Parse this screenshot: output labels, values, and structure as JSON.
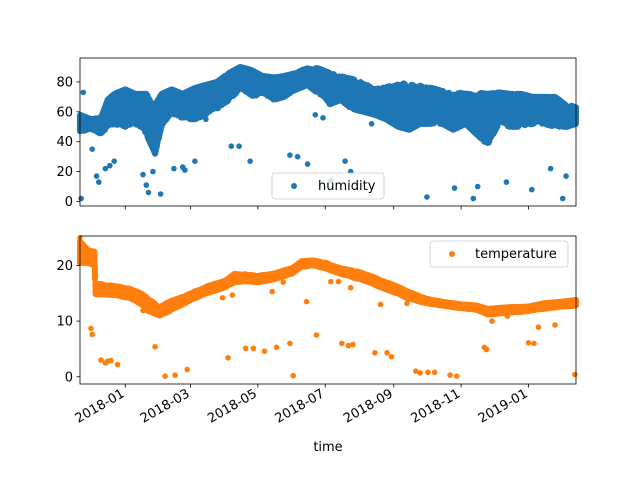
{
  "chart_data": [
    {
      "type": "scatter",
      "xlabel": "",
      "x_axis": {
        "type": "date",
        "xlim": [
          "2017-11-21",
          "2019-02-13"
        ],
        "ticks": [
          "2018-01",
          "2018-03",
          "2018-05",
          "2018-07",
          "2018-09",
          "2018-11",
          "2019-01"
        ],
        "tick_labels_visible": false
      },
      "ylim": [
        -3,
        96
      ],
      "yticks": [
        0,
        20,
        40,
        60,
        80
      ],
      "legend": {
        "entries": [
          "humidity"
        ],
        "placement": "lower-center"
      },
      "grid": false,
      "series": [
        {
          "name": "humidity",
          "color": "#1f77b4",
          "marker": "circle",
          "band": [
            [
              "2017-11-21",
              47,
              58
            ],
            [
              "2017-12-01",
              48,
              55
            ],
            [
              "2017-12-10",
              45,
              56
            ],
            [
              "2017-12-16",
              50,
              68
            ],
            [
              "2017-12-22",
              52,
              72
            ],
            [
              "2018-01-01",
              48,
              75
            ],
            [
              "2018-01-10",
              52,
              72
            ],
            [
              "2018-01-20",
              45,
              72
            ],
            [
              "2018-01-28",
              32,
              65
            ],
            [
              "2018-02-03",
              50,
              72
            ],
            [
              "2018-02-12",
              58,
              75
            ],
            [
              "2018-02-22",
              55,
              72
            ],
            [
              "2018-03-05",
              55,
              76
            ],
            [
              "2018-03-15",
              58,
              78
            ],
            [
              "2018-03-25",
              62,
              80
            ],
            [
              "2018-04-05",
              68,
              86
            ],
            [
              "2018-04-15",
              75,
              90
            ],
            [
              "2018-04-25",
              70,
              88
            ],
            [
              "2018-05-05",
              72,
              84
            ],
            [
              "2018-05-15",
              68,
              83
            ],
            [
              "2018-05-25",
              70,
              84
            ],
            [
              "2018-06-05",
              75,
              86
            ],
            [
              "2018-06-15",
              78,
              90
            ],
            [
              "2018-06-25",
              72,
              89
            ],
            [
              "2018-07-05",
              65,
              86
            ],
            [
              "2018-07-15",
              68,
              84
            ],
            [
              "2018-07-25",
              62,
              82
            ],
            [
              "2018-08-05",
              60,
              80
            ],
            [
              "2018-08-15",
              58,
              76
            ],
            [
              "2018-08-25",
              55,
              78
            ],
            [
              "2018-09-05",
              50,
              80
            ],
            [
              "2018-09-15",
              48,
              78
            ],
            [
              "2018-09-25",
              52,
              78
            ],
            [
              "2018-10-05",
              52,
              76
            ],
            [
              "2018-10-15",
              52,
              74
            ],
            [
              "2018-10-25",
              48,
              72
            ],
            [
              "2018-11-05",
              52,
              74
            ],
            [
              "2018-11-15",
              45,
              73
            ],
            [
              "2018-11-25",
              38,
              72
            ],
            [
              "2018-12-05",
              52,
              73
            ],
            [
              "2018-12-15",
              50,
              72
            ],
            [
              "2018-12-25",
              50,
              72
            ],
            [
              "2019-01-05",
              52,
              70
            ],
            [
              "2019-01-15",
              52,
              70
            ],
            [
              "2019-01-25",
              50,
              70
            ],
            [
              "2019-02-05",
              50,
              64
            ],
            [
              "2019-02-13",
              52,
              64
            ]
          ],
          "points": [
            [
              "2017-11-22",
              2
            ],
            [
              "2017-11-24",
              73
            ],
            [
              "2017-12-02",
              35
            ],
            [
              "2017-12-06",
              17
            ],
            [
              "2017-12-08",
              13
            ],
            [
              "2017-12-14",
              22
            ],
            [
              "2017-12-18",
              24
            ],
            [
              "2017-12-22",
              27
            ],
            [
              "2018-01-17",
              18
            ],
            [
              "2018-01-20",
              11
            ],
            [
              "2018-01-22",
              6
            ],
            [
              "2018-01-26",
              20
            ],
            [
              "2018-01-27",
              34
            ],
            [
              "2018-02-02",
              5
            ],
            [
              "2018-02-14",
              22
            ],
            [
              "2018-02-22",
              23
            ],
            [
              "2018-02-24",
              21
            ],
            [
              "2018-03-05",
              27
            ],
            [
              "2018-03-15",
              55
            ],
            [
              "2018-04-07",
              37
            ],
            [
              "2018-04-14",
              37
            ],
            [
              "2018-04-24",
              27
            ],
            [
              "2018-05-30",
              31
            ],
            [
              "2018-06-06",
              30
            ],
            [
              "2018-06-15",
              25
            ],
            [
              "2018-06-22",
              58
            ],
            [
              "2018-06-29",
              56
            ],
            [
              "2018-07-06",
              14
            ],
            [
              "2018-07-19",
              27
            ],
            [
              "2018-07-24",
              20
            ],
            [
              "2018-08-12",
              52
            ],
            [
              "2018-09-14",
              52
            ],
            [
              "2018-10-01",
              3
            ],
            [
              "2018-10-26",
              9
            ],
            [
              "2018-11-12",
              2
            ],
            [
              "2018-11-16",
              10
            ],
            [
              "2018-12-12",
              13
            ],
            [
              "2019-01-04",
              8
            ],
            [
              "2019-01-21",
              22
            ],
            [
              "2019-02-01",
              2
            ],
            [
              "2019-02-04",
              17
            ]
          ]
        }
      ]
    },
    {
      "type": "scatter",
      "xlabel": "time",
      "x_axis": {
        "type": "date",
        "xlim": [
          "2017-11-21",
          "2019-02-13"
        ],
        "ticks": [
          "2018-01",
          "2018-03",
          "2018-05",
          "2018-07",
          "2018-09",
          "2018-11",
          "2019-01"
        ],
        "tick_labels": [
          "2018-01",
          "2018-03",
          "2018-05",
          "2018-07",
          "2018-09",
          "2018-11",
          "2019-01"
        ],
        "tick_rotation": 30
      },
      "ylim": [
        -1.3,
        25.3
      ],
      "yticks": [
        0,
        10,
        20
      ],
      "legend": {
        "entries": [
          "temperature"
        ],
        "placement": "upper-right"
      },
      "grid": false,
      "series": [
        {
          "name": "temperature",
          "color": "#ff7f0e",
          "marker": "circle",
          "band": [
            [
              "2017-11-21",
              20.5,
              24.5
            ],
            [
              "2017-11-28",
              20.5,
              23.0
            ],
            [
              "2017-12-04",
              20.0,
              22.5
            ],
            [
              "2017-12-05",
              14.8,
              16.8
            ],
            [
              "2017-12-15",
              14.8,
              16.5
            ],
            [
              "2017-12-25",
              14.5,
              16.2
            ],
            [
              "2018-01-05",
              14.2,
              15.8
            ],
            [
              "2018-01-15",
              13.0,
              15.0
            ],
            [
              "2018-01-22",
              11.8,
              14.0
            ],
            [
              "2018-02-01",
              11.0,
              12.5
            ],
            [
              "2018-02-10",
              11.8,
              13.5
            ],
            [
              "2018-02-20",
              12.8,
              14.2
            ],
            [
              "2018-03-01",
              13.8,
              15.0
            ],
            [
              "2018-03-15",
              15.0,
              16.2
            ],
            [
              "2018-04-01",
              16.0,
              17.2
            ],
            [
              "2018-04-10",
              17.0,
              18.5
            ],
            [
              "2018-04-20",
              17.2,
              18.4
            ],
            [
              "2018-05-01",
              17.0,
              18.2
            ],
            [
              "2018-05-15",
              17.5,
              18.6
            ],
            [
              "2018-06-01",
              18.5,
              19.5
            ],
            [
              "2018-06-10",
              19.8,
              20.8
            ],
            [
              "2018-06-20",
              20.0,
              20.9
            ],
            [
              "2018-07-01",
              19.5,
              20.5
            ],
            [
              "2018-07-15",
              18.5,
              19.5
            ],
            [
              "2018-08-01",
              17.5,
              18.8
            ],
            [
              "2018-08-15",
              16.5,
              17.8
            ],
            [
              "2018-09-01",
              15.2,
              16.5
            ],
            [
              "2018-09-15",
              14.0,
              15.2
            ],
            [
              "2018-10-01",
              13.2,
              14.0
            ],
            [
              "2018-10-15",
              12.8,
              13.5
            ],
            [
              "2018-11-01",
              12.3,
              13.0
            ],
            [
              "2018-11-15",
              12.0,
              12.8
            ],
            [
              "2018-11-25",
              11.2,
              12.2
            ],
            [
              "2018-12-15",
              11.5,
              12.5
            ],
            [
              "2019-01-01",
              11.8,
              12.6
            ],
            [
              "2019-01-15",
              12.2,
              13.2
            ],
            [
              "2019-02-01",
              12.6,
              13.5
            ],
            [
              "2019-02-13",
              12.8,
              13.8
            ]
          ],
          "points": [
            [
              "2017-11-21",
              25
            ],
            [
              "2017-12-01",
              8.7
            ],
            [
              "2017-12-02",
              7.6
            ],
            [
              "2017-12-10",
              3
            ],
            [
              "2017-12-14",
              2.5
            ],
            [
              "2017-12-16",
              2.8
            ],
            [
              "2017-12-19",
              2.9
            ],
            [
              "2017-12-25",
              2.2
            ],
            [
              "2018-01-17",
              11.9
            ],
            [
              "2018-01-28",
              5.4
            ],
            [
              "2018-02-06",
              0.1
            ],
            [
              "2018-02-15",
              0.3
            ],
            [
              "2018-02-26",
              1.3
            ],
            [
              "2018-03-30",
              14.2
            ],
            [
              "2018-04-04",
              3.4
            ],
            [
              "2018-04-08",
              14.7
            ],
            [
              "2018-04-20",
              5.1
            ],
            [
              "2018-04-27",
              5.1
            ],
            [
              "2018-05-07",
              4.6
            ],
            [
              "2018-05-14",
              15.3
            ],
            [
              "2018-05-18",
              5.3
            ],
            [
              "2018-05-24",
              17
            ],
            [
              "2018-05-30",
              6
            ],
            [
              "2018-06-02",
              0.2
            ],
            [
              "2018-06-14",
              13.5
            ],
            [
              "2018-06-23",
              7.5
            ],
            [
              "2018-07-06",
              17.1
            ],
            [
              "2018-07-13",
              17.1
            ],
            [
              "2018-07-16",
              6
            ],
            [
              "2018-07-22",
              5.6
            ],
            [
              "2018-07-24",
              16
            ],
            [
              "2018-07-26",
              5.8
            ],
            [
              "2018-08-15",
              4.3
            ],
            [
              "2018-08-20",
              13
            ],
            [
              "2018-08-26",
              4.3
            ],
            [
              "2018-08-30",
              3.6
            ],
            [
              "2018-09-13",
              13.2
            ],
            [
              "2018-09-21",
              1
            ],
            [
              "2018-09-25",
              0.7
            ],
            [
              "2018-10-02",
              0.8
            ],
            [
              "2018-10-08",
              0.8
            ],
            [
              "2018-10-22",
              0.3
            ],
            [
              "2018-10-26",
              12.5
            ],
            [
              "2018-10-28",
              0.1
            ],
            [
              "2018-11-22",
              5.3
            ],
            [
              "2018-11-24",
              4.9
            ],
            [
              "2018-11-29",
              10
            ],
            [
              "2018-12-13",
              10.9
            ],
            [
              "2019-01-01",
              6.1
            ],
            [
              "2019-01-06",
              6
            ],
            [
              "2019-01-10",
              8.9
            ],
            [
              "2019-01-25",
              9.3
            ],
            [
              "2019-02-12",
              0.4
            ]
          ]
        }
      ]
    }
  ]
}
